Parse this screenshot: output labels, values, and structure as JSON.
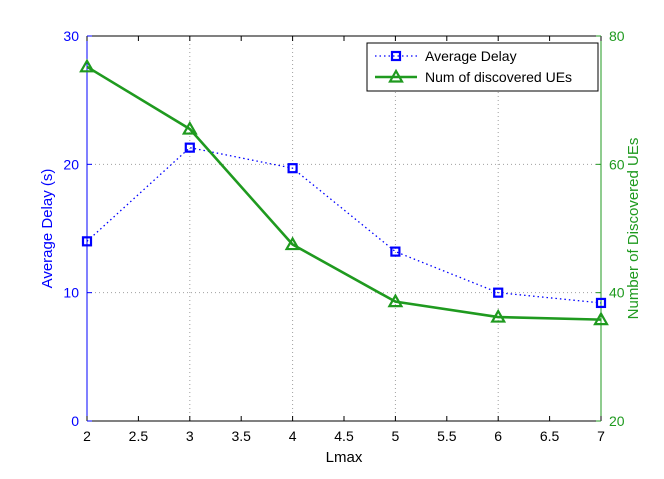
{
  "chart_data": {
    "type": "line",
    "title": "",
    "xlabel": "Lmax",
    "ylabel_left": "Average Delay (s)",
    "ylabel_right": "Number of Discovered UEs",
    "x": [
      2,
      3,
      4,
      5,
      6,
      7
    ],
    "xlim": [
      2,
      7
    ],
    "xticks": [
      "2",
      "2.5",
      "3",
      "3.5",
      "4",
      "4.5",
      "5",
      "5.5",
      "6",
      "6.5",
      "7"
    ],
    "ylim_left": [
      0,
      30
    ],
    "yticks_left": [
      "0",
      "10",
      "20",
      "30"
    ],
    "ylim_right": [
      20,
      80
    ],
    "yticks_right": [
      "20",
      "40",
      "60",
      "80"
    ],
    "grid": true,
    "legend_position": "top-right",
    "series": [
      {
        "name": "Average Delay",
        "axis": "left",
        "color": "#0000ff",
        "line_style": "dotted",
        "marker": "square",
        "values": [
          14.0,
          21.3,
          19.7,
          13.2,
          10.0,
          9.2
        ]
      },
      {
        "name": "Num of discovered UEs",
        "axis": "right",
        "color": "#1f9a1f",
        "line_style": "solid",
        "marker": "triangle",
        "values": [
          75.2,
          65.5,
          47.5,
          38.6,
          36.2,
          35.8
        ]
      }
    ],
    "colors": {
      "left_axis": "#0000ff",
      "right_axis": "#1f9a1f",
      "grid": "#a0a0a0"
    }
  }
}
